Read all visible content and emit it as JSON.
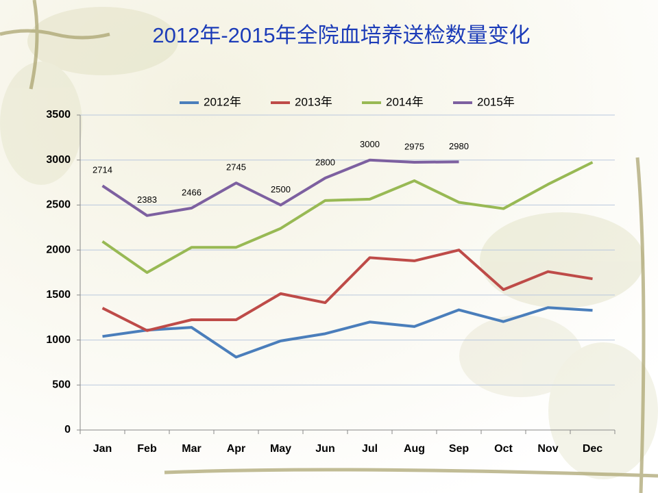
{
  "chart_data": {
    "type": "line",
    "title": "2012年-2015年全院血培养送检数量变化",
    "categories": [
      "Jan",
      "Feb",
      "Mar",
      "Apr",
      "May",
      "Jun",
      "Jul",
      "Aug",
      "Sep",
      "Oct",
      "Nov",
      "Dec"
    ],
    "series": [
      {
        "name": "2012年",
        "color": "#4a7ebb",
        "values": [
          1040,
          1110,
          1140,
          810,
          990,
          1070,
          1200,
          1150,
          1335,
          1205,
          1360,
          1330
        ]
      },
      {
        "name": "2013年",
        "color": "#be4b48",
        "values": [
          1355,
          1105,
          1225,
          1225,
          1515,
          1415,
          1915,
          1880,
          2000,
          1560,
          1760,
          1680
        ]
      },
      {
        "name": "2014年",
        "color": "#98b954",
        "values": [
          2095,
          1750,
          2030,
          2030,
          2240,
          2550,
          2565,
          2770,
          2530,
          2460,
          2730,
          2975
        ]
      },
      {
        "name": "2015年",
        "color": "#7d60a0",
        "values": [
          2714,
          2383,
          2466,
          2745,
          2500,
          2800,
          3000,
          2975,
          2980,
          null,
          null,
          null
        ],
        "data_labels": true
      }
    ],
    "ylim": [
      0,
      3500
    ],
    "yticks": [
      0,
      500,
      1000,
      1500,
      2000,
      2500,
      3000,
      3500
    ],
    "grid": true,
    "legend": "top"
  }
}
